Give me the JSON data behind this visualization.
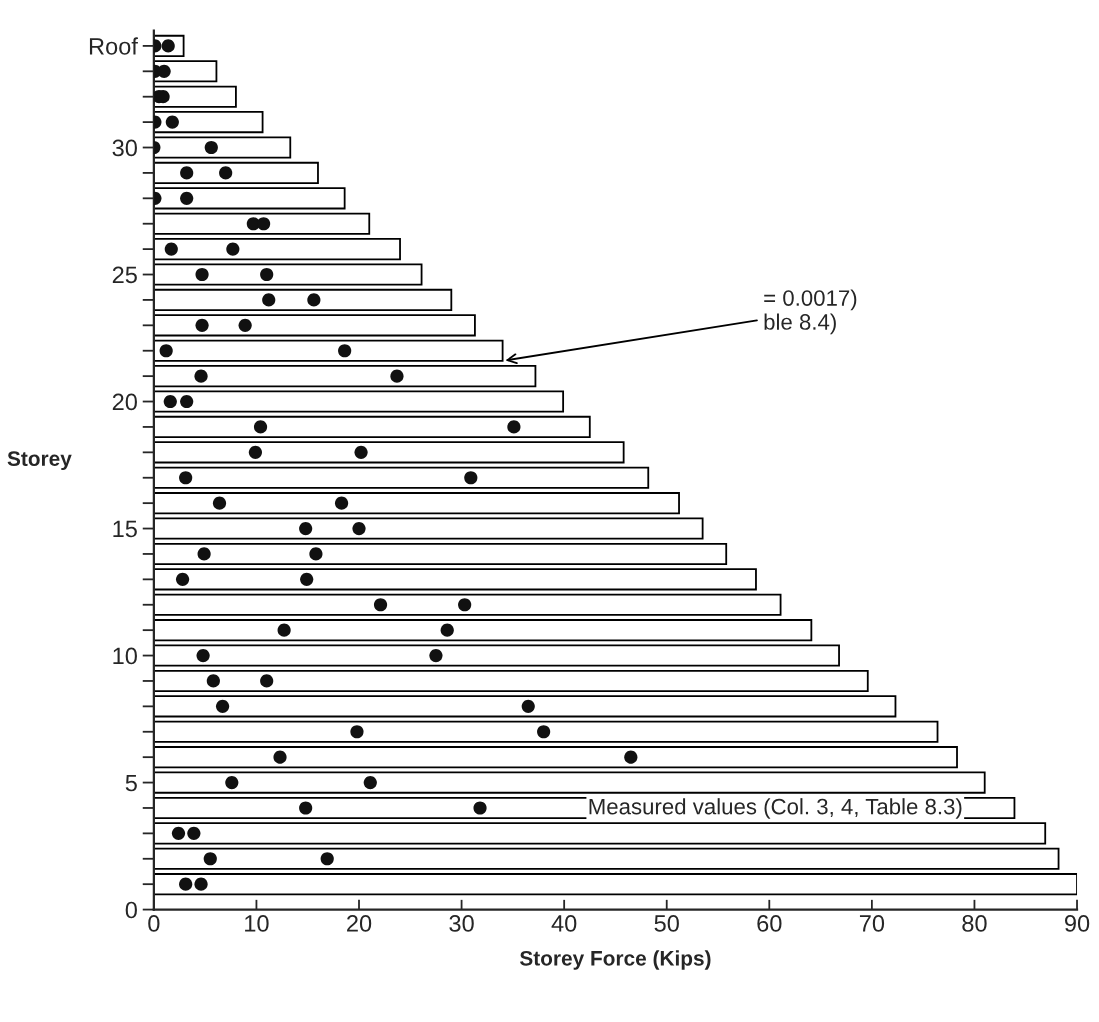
{
  "chart_data": {
    "type": "bar",
    "orientation": "horizontal",
    "xlabel": "Storey Force (Kips)",
    "ylabel": "Storey",
    "xlim": [
      0,
      90
    ],
    "xticks": [
      0,
      10,
      20,
      30,
      40,
      50,
      60,
      70,
      80,
      90
    ],
    "ylim": [
      0,
      34.6
    ],
    "yticks": [
      0,
      {
        "value": 1,
        "label": null
      },
      {
        "value": 2,
        "label": null
      },
      {
        "value": 3,
        "label": null
      },
      {
        "value": 4,
        "label": null
      },
      5,
      {
        "value": 6,
        "label": null
      },
      {
        "value": 7,
        "label": null
      },
      {
        "value": 8,
        "label": null
      },
      {
        "value": 9,
        "label": null
      },
      10,
      {
        "value": 11,
        "label": null
      },
      {
        "value": 12,
        "label": null
      },
      {
        "value": 13,
        "label": null
      },
      {
        "value": 14,
        "label": null
      },
      15,
      {
        "value": 16,
        "label": null
      },
      {
        "value": 17,
        "label": null
      },
      {
        "value": 18,
        "label": null
      },
      {
        "value": 19,
        "label": null
      },
      20,
      {
        "value": 21,
        "label": null
      },
      {
        "value": 22,
        "label": null
      },
      {
        "value": 23,
        "label": null
      },
      {
        "value": 24,
        "label": null
      },
      25,
      {
        "value": 26,
        "label": null
      },
      {
        "value": 27,
        "label": null
      },
      {
        "value": 28,
        "label": null
      },
      {
        "value": 29,
        "label": null
      },
      30,
      {
        "value": 31,
        "label": null
      },
      {
        "value": 32,
        "label": null
      },
      {
        "value": 33,
        "label": null
      },
      {
        "value": 34,
        "label": "Roof"
      }
    ],
    "grid": false,
    "legend": false,
    "marker": "circle",
    "series": [
      {
        "color": "#ffffff",
        "x": [
          34,
          33,
          32,
          31,
          30,
          29,
          28,
          27,
          26,
          25,
          24,
          23,
          22,
          21,
          20,
          19,
          18,
          17,
          16,
          15,
          14,
          13,
          12,
          11,
          10,
          9,
          8,
          7,
          6,
          5,
          4,
          3,
          2,
          1
        ],
        "values": [
          2.9,
          6.1,
          8.0,
          10.6,
          13.3,
          16.0,
          18.6,
          21.0,
          24.0,
          26.1,
          29.0,
          31.3,
          34.0,
          37.2,
          39.9,
          42.5,
          45.8,
          48.2,
          51.2,
          53.5,
          55.8,
          58.7,
          61.1,
          64.1,
          66.8,
          69.6,
          72.3,
          76.4,
          78.3,
          81.0,
          83.9,
          86.9,
          88.2,
          90.0
        ]
      },
      {
        "type": "scatter",
        "color": "#111111",
        "x": [
          34,
          34,
          33,
          33,
          32,
          32,
          31,
          31,
          30,
          30,
          29,
          29,
          28,
          28,
          27,
          27,
          26,
          26,
          25,
          25,
          24,
          24,
          23,
          23,
          22,
          22,
          21,
          21,
          20,
          20,
          19,
          19,
          18,
          18,
          17,
          17,
          16,
          16,
          15,
          15,
          14,
          14,
          13,
          13,
          12,
          12,
          11,
          11,
          10,
          10,
          9,
          9,
          8,
          8,
          7,
          7,
          6,
          6,
          5,
          5,
          4,
          4,
          3,
          3,
          2,
          2,
          1,
          1
        ],
        "values": [
          0.1,
          1.4,
          0.1,
          1.0,
          0.5,
          0.9,
          0.1,
          1.8,
          0,
          5.6,
          3.2,
          7.0,
          0.1,
          3.2,
          9.7,
          10.7,
          1.7,
          7.7,
          4.7,
          11.0,
          11.2,
          15.6,
          4.7,
          8.9,
          1.2,
          18.6,
          4.6,
          23.7,
          1.6,
          3.2,
          10.4,
          35.1,
          9.9,
          20.2,
          3.1,
          30.9,
          6.4,
          18.3,
          14.8,
          20.0,
          4.9,
          15.8,
          2.8,
          14.9,
          22.1,
          30.3,
          12.7,
          28.6,
          4.8,
          27.5,
          5.8,
          11.0,
          6.7,
          36.5,
          19.8,
          38.0,
          12.3,
          46.5,
          7.6,
          21.1,
          14.8,
          31.8,
          2.4,
          3.9,
          5.5,
          16.9,
          3.1,
          4.6
        ]
      }
    ],
    "annotations": [
      {
        "text": "= 0.0017)\nble 8.4)",
        "x": 34.0,
        "y": 21.6
      },
      "Measured values (Col. 3, 4, Table 8.3)"
    ]
  }
}
